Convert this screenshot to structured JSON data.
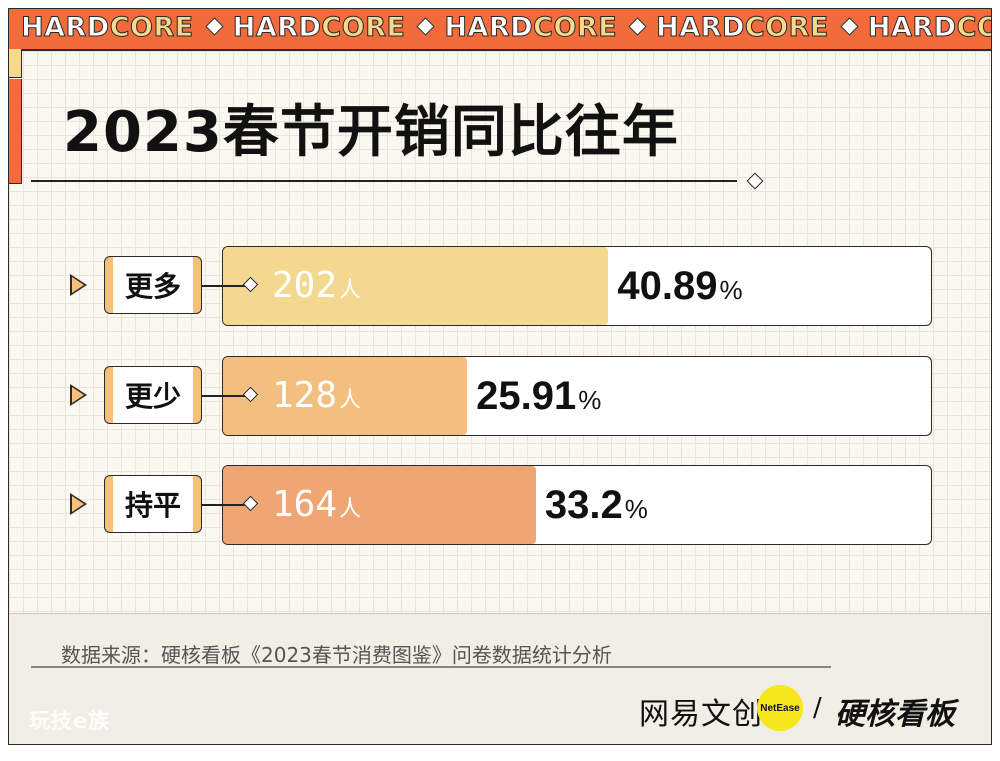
{
  "banner": {
    "word_part1": "HARD",
    "word_part2": "CORE",
    "repeat": 5
  },
  "title": "2023春节开销同比往年",
  "chart_data": {
    "type": "bar",
    "orientation": "horizontal",
    "title": "2023春节开销同比往年",
    "categories": [
      "更多",
      "更少",
      "持平"
    ],
    "values": [
      202,
      128,
      164
    ],
    "value_unit": "人",
    "percentages": [
      40.89,
      25.91,
      33.2
    ],
    "percent_labels": [
      "40.89",
      "25.91",
      "33.2"
    ],
    "percent_unit": "%",
    "colors": [
      "#f3d98f",
      "#f3bf7e",
      "#f0a672"
    ],
    "xlim": [
      0,
      100
    ]
  },
  "rows": [
    {
      "label": "更多",
      "count": "202",
      "unit": "人",
      "percent": "40.89",
      "pct_unit": "%"
    },
    {
      "label": "更少",
      "count": "128",
      "unit": "人",
      "percent": "25.91",
      "pct_unit": "%"
    },
    {
      "label": "持平",
      "count": "164",
      "unit": "人",
      "percent": "33.2",
      "pct_unit": "%"
    }
  ],
  "footer": {
    "source": "数据来源：硬核看板《2023春节消费图鉴》问卷数据统计分析",
    "watermark": "玩技e族",
    "brand_left": "网易文创",
    "badge": "NetEase",
    "slash": "/",
    "brand_right": "硬核看板"
  },
  "colors": {
    "banner": "#f26b3b",
    "banner_accent": "#f5d98d",
    "badge": "#f6e81c"
  }
}
